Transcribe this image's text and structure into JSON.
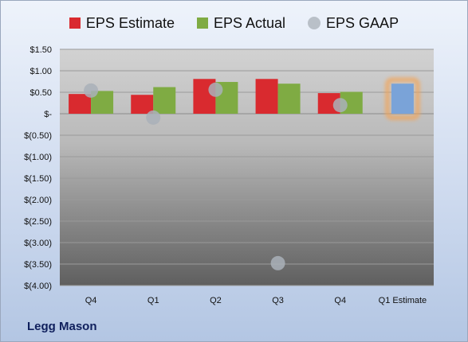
{
  "company": "Legg Mason",
  "chart_data": {
    "type": "bar",
    "categories": [
      "Q4",
      "Q1",
      "Q2",
      "Q3",
      "Q4",
      "Q1 Estimate"
    ],
    "series": [
      {
        "name": "EPS Estimate",
        "color": "#d92a2f",
        "values": [
          0.46,
          0.44,
          0.81,
          0.81,
          0.48,
          null
        ]
      },
      {
        "name": "EPS Actual",
        "color": "#7fab43",
        "values": [
          0.53,
          0.62,
          0.74,
          0.7,
          0.51,
          0.7
        ]
      },
      {
        "name": "EPS GAAP",
        "color": "#a9b0b9",
        "type": "scatter",
        "values": [
          0.54,
          -0.09,
          0.56,
          -3.48,
          0.2,
          null
        ]
      }
    ],
    "projected": {
      "category_index": 5,
      "color": "#7aa3d8",
      "glow": "#f2a55a"
    },
    "ylim": [
      -4.0,
      1.5
    ],
    "yticks": [
      1.5,
      1.0,
      0.5,
      0,
      -0.5,
      -1.0,
      -1.5,
      -2.0,
      -2.5,
      -3.0,
      -3.5,
      -4.0
    ],
    "ytick_labels": [
      "$1.50",
      "$1.00",
      "$0.50",
      "$-",
      "$(0.50)",
      "$(1.00)",
      "$(1.50)",
      "$(2.00)",
      "$(2.50)",
      "$(3.00)",
      "$(3.50)",
      "$(4.00)"
    ],
    "grid": true,
    "legend": "top"
  }
}
